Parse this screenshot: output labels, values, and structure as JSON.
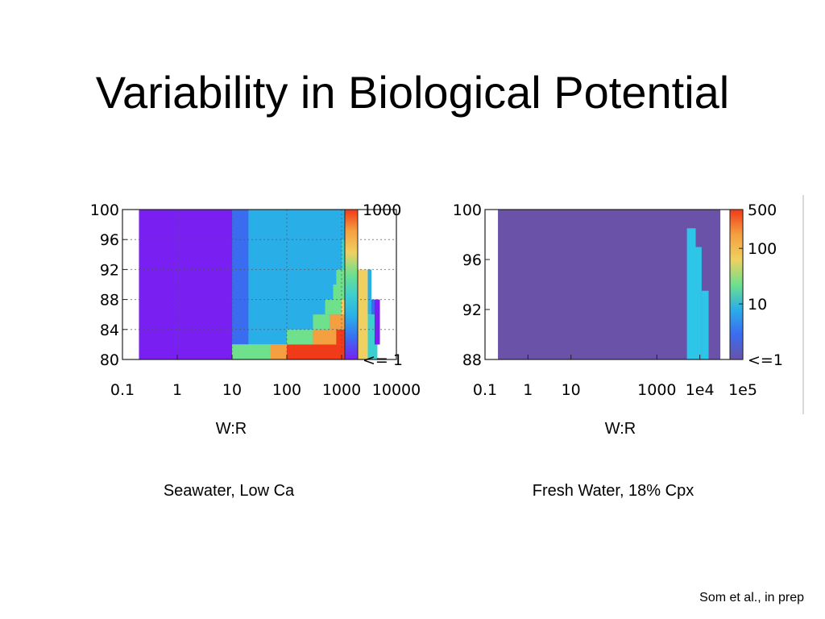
{
  "slide": {
    "title": "Variability in Biological Potential",
    "citation": "Som et al., in prep"
  },
  "panels": [
    {
      "xlabel": "W:R",
      "caption": "Seawater, Low Ca"
    },
    {
      "xlabel": "W:R",
      "caption": "Fresh Water, 18% Cpx"
    }
  ],
  "colors": {
    "violet": "#7a1ff2",
    "blue": "#3a6cf0",
    "lightblue": "#2aaee8",
    "teal": "#3ccfcf",
    "green": "#6fe08c",
    "yellow": "#f0d060",
    "orange": "#f5a040",
    "red": "#f03a18",
    "slate": "#6a52a8",
    "cyan": "#2ec6e8"
  },
  "chart_data": [
    {
      "type": "heatmap",
      "x_axis": {
        "scale": "log",
        "ticks": [
          0.1,
          1,
          10,
          100,
          1000,
          10000
        ],
        "tick_labels": [
          "0.1",
          "1",
          "10",
          "100",
          "1000",
          "10000"
        ],
        "range": [
          0.1,
          10000
        ]
      },
      "y_axis": {
        "ticks": [
          80,
          84,
          88,
          92,
          96,
          100
        ],
        "tick_labels": [
          "80",
          "84",
          "88",
          "92",
          "96",
          "100"
        ],
        "range": [
          80,
          100
        ]
      },
      "colorbar": {
        "labels": [
          "1000",
          "<= 1"
        ],
        "range": [
          1,
          1000
        ],
        "scale": "log"
      },
      "grid": true,
      "xlabel": "W:R",
      "caption": "Seawater, Low Ca",
      "cells": [
        {
          "x": [
            0.2,
            10
          ],
          "y": [
            80,
            100
          ],
          "color": "violet"
        },
        {
          "x": [
            10,
            20
          ],
          "y": [
            82,
            100
          ],
          "color": "blue"
        },
        {
          "x": [
            20,
            1500
          ],
          "y": [
            82,
            100
          ],
          "color": "lightblue"
        },
        {
          "x": [
            10,
            50
          ],
          "y": [
            80,
            82
          ],
          "color": "green"
        },
        {
          "x": [
            50,
            100
          ],
          "y": [
            80,
            82
          ],
          "color": "orange"
        },
        {
          "x": [
            100,
            2000
          ],
          "y": [
            80,
            82
          ],
          "color": "red"
        },
        {
          "x": [
            100,
            300
          ],
          "y": [
            82,
            84
          ],
          "color": "green"
        },
        {
          "x": [
            300,
            800
          ],
          "y": [
            82,
            84
          ],
          "color": "orange"
        },
        {
          "x": [
            800,
            2000
          ],
          "y": [
            82,
            84
          ],
          "color": "red"
        },
        {
          "x": [
            300,
            600
          ],
          "y": [
            84,
            86
          ],
          "color": "green"
        },
        {
          "x": [
            600,
            2000
          ],
          "y": [
            84,
            86
          ],
          "color": "orange"
        },
        {
          "x": [
            500,
            1000
          ],
          "y": [
            86,
            88
          ],
          "color": "green"
        },
        {
          "x": [
            1000,
            2200
          ],
          "y": [
            86,
            88
          ],
          "color": "yellow"
        },
        {
          "x": [
            700,
            1200
          ],
          "y": [
            88,
            90
          ],
          "color": "green"
        },
        {
          "x": [
            1200,
            2500
          ],
          "y": [
            88,
            90
          ],
          "color": "yellow"
        },
        {
          "x": [
            800,
            1500
          ],
          "y": [
            90,
            92
          ],
          "color": "green"
        },
        {
          "x": [
            1500,
            2500
          ],
          "y": [
            90,
            92
          ],
          "color": "yellow"
        },
        {
          "x": [
            1000,
            2000
          ],
          "y": [
            92,
            94
          ],
          "color": "teal"
        },
        {
          "x": [
            1000,
            2000
          ],
          "y": [
            94,
            96
          ],
          "color": "teal"
        },
        {
          "x": [
            2000,
            3000
          ],
          "y": [
            80,
            92
          ],
          "color": "yellow"
        },
        {
          "x": [
            3000,
            4500
          ],
          "y": [
            80,
            86
          ],
          "color": "teal"
        },
        {
          "x": [
            3000,
            3500
          ],
          "y": [
            86,
            92
          ],
          "color": "lightblue"
        },
        {
          "x": [
            3500,
            4500
          ],
          "y": [
            86,
            88
          ],
          "color": "blue"
        },
        {
          "x": [
            4000,
            5000
          ],
          "y": [
            82,
            88
          ],
          "color": "violet"
        }
      ]
    },
    {
      "type": "heatmap",
      "x_axis": {
        "scale": "log",
        "ticks": [
          0.1,
          1,
          10,
          1000,
          10000,
          100000
        ],
        "tick_labels": [
          "0.1",
          "1",
          "10",
          "1000",
          "1e4",
          "1e5"
        ],
        "range": [
          0.1,
          100000
        ]
      },
      "y_axis": {
        "ticks": [
          88,
          92,
          96,
          100
        ],
        "tick_labels": [
          "88",
          "92",
          "96",
          "100"
        ],
        "range": [
          88,
          100
        ]
      },
      "colorbar": {
        "labels": [
          "500",
          "100",
          "10",
          "<=1"
        ],
        "range": [
          1,
          500
        ],
        "scale": "log"
      },
      "grid": false,
      "xlabel": "W:R",
      "caption": "Fresh Water, 18% Cpx",
      "cells": [
        {
          "x": [
            0.2,
            30000
          ],
          "y": [
            88,
            100
          ],
          "color": "slate"
        },
        {
          "x": [
            5000,
            8000
          ],
          "y": [
            88,
            98.5
          ],
          "color": "cyan"
        },
        {
          "x": [
            8000,
            11000
          ],
          "y": [
            88,
            97
          ],
          "color": "cyan"
        },
        {
          "x": [
            11000,
            16000
          ],
          "y": [
            88,
            93.5
          ],
          "color": "cyan"
        }
      ]
    }
  ]
}
